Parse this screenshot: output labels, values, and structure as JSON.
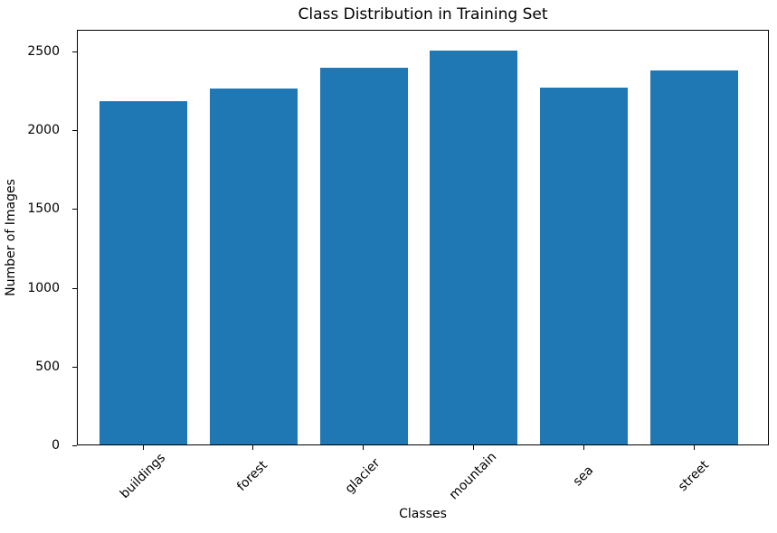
{
  "chart_data": {
    "type": "bar",
    "title": "Class Distribution in Training Set",
    "xlabel": "Classes",
    "ylabel": "Number of Images",
    "categories": [
      "buildings",
      "forest",
      "glacier",
      "mountain",
      "sea",
      "street"
    ],
    "values": [
      2191,
      2271,
      2404,
      2512,
      2274,
      2382
    ],
    "yticks": [
      0,
      500,
      1000,
      1500,
      2000,
      2500
    ],
    "ylim": [
      0,
      2638
    ],
    "bar_color": "#1f77b4",
    "xtick_rotation_deg": 45,
    "grid": false,
    "legend_position": "none"
  }
}
